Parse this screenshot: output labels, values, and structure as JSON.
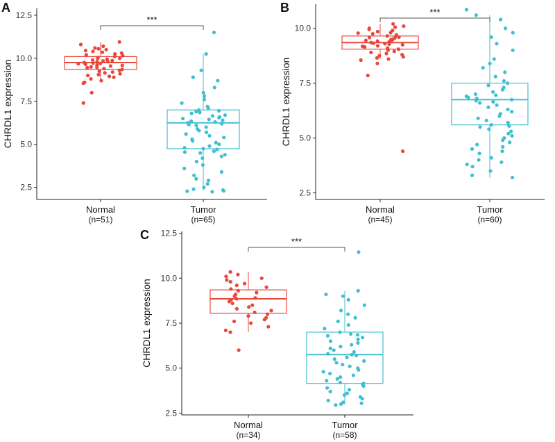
{
  "colors": {
    "normal": "#E8473B",
    "tumor": "#40BFD1"
  },
  "chart_data": [
    {
      "type": "boxplot",
      "panel_label": "A",
      "ylabel": "CHRDL1 expression",
      "ylim": [
        1.8,
        12.9
      ],
      "yticks": [
        2.5,
        5.0,
        7.5,
        10.0,
        12.5
      ],
      "ytick_labels": [
        "2.5",
        "5.0",
        "7.5",
        "10.0",
        "12.5"
      ],
      "significance": "***",
      "groups": [
        {
          "name": "Normal",
          "n_label": "(n=51)",
          "color_key": "normal",
          "box": {
            "q1": 9.35,
            "median": 9.75,
            "q3": 10.1,
            "whisker_low": 8.6,
            "whisker_high": 10.95
          },
          "points": [
            10.95,
            10.8,
            10.7,
            10.6,
            10.55,
            10.5,
            10.45,
            10.4,
            10.35,
            10.3,
            10.25,
            10.2,
            10.15,
            10.1,
            10.05,
            10.0,
            9.98,
            9.95,
            9.9,
            9.87,
            9.85,
            9.8,
            9.78,
            9.75,
            9.72,
            9.7,
            9.68,
            9.65,
            9.6,
            9.58,
            9.55,
            9.5,
            9.48,
            9.45,
            9.4,
            9.35,
            9.3,
            9.25,
            9.2,
            9.15,
            9.1,
            9.05,
            9.0,
            8.95,
            8.9,
            8.8,
            8.7,
            8.6,
            8.55,
            8.0,
            7.4
          ]
        },
        {
          "name": "Tumor",
          "n_label": "(n=65)",
          "color_key": "tumor",
          "box": {
            "q1": 4.75,
            "median": 6.25,
            "q3": 7.0,
            "whisker_low": 2.3,
            "whisker_high": 10.25
          },
          "points": [
            11.5,
            10.25,
            9.3,
            8.9,
            8.7,
            8.3,
            8.0,
            7.8,
            7.6,
            7.4,
            7.2,
            7.1,
            7.0,
            6.95,
            6.9,
            6.85,
            6.8,
            6.7,
            6.65,
            6.6,
            6.55,
            6.5,
            6.45,
            6.4,
            6.35,
            6.3,
            6.25,
            6.2,
            6.15,
            6.1,
            6.0,
            5.9,
            5.8,
            5.7,
            5.6,
            5.5,
            5.4,
            5.3,
            5.2,
            5.1,
            5.0,
            4.9,
            4.8,
            4.75,
            4.7,
            4.6,
            4.55,
            4.5,
            4.4,
            4.3,
            4.2,
            4.0,
            3.8,
            3.6,
            3.4,
            3.2,
            3.0,
            2.9,
            2.7,
            2.5,
            2.4,
            2.35,
            2.3,
            2.28,
            2.25
          ]
        }
      ]
    },
    {
      "type": "boxplot",
      "panel_label": "B",
      "ylabel": "CHRDL1 expression",
      "ylim": [
        2.2,
        11.1
      ],
      "yticks": [
        2.5,
        5.0,
        7.5,
        10.0
      ],
      "ytick_labels": [
        "2.5",
        "5.0",
        "7.5",
        "10.0"
      ],
      "significance": "***",
      "groups": [
        {
          "name": "Normal",
          "n_label": "(n=45)",
          "color_key": "normal",
          "box": {
            "q1": 9.05,
            "median": 9.35,
            "q3": 9.65,
            "whisker_low": 8.6,
            "whisker_high": 10.2
          },
          "points": [
            10.2,
            10.1,
            10.05,
            10.0,
            9.95,
            9.9,
            9.85,
            9.8,
            9.78,
            9.75,
            9.7,
            9.65,
            9.6,
            9.58,
            9.55,
            9.5,
            9.48,
            9.45,
            9.42,
            9.4,
            9.38,
            9.35,
            9.32,
            9.3,
            9.28,
            9.25,
            9.2,
            9.18,
            9.15,
            9.1,
            9.05,
            9.0,
            8.95,
            8.9,
            8.85,
            8.8,
            8.75,
            8.7,
            8.65,
            8.6,
            8.55,
            8.4,
            7.85,
            9.6,
            4.4
          ]
        },
        {
          "name": "Tumor",
          "n_label": "(n=60)",
          "color_key": "tumor",
          "box": {
            "q1": 5.6,
            "median": 6.75,
            "q3": 7.5,
            "whisker_low": 3.2,
            "whisker_high": 10.6
          },
          "points": [
            10.85,
            10.6,
            10.4,
            10.0,
            9.8,
            9.6,
            9.3,
            9.0,
            8.6,
            8.4,
            8.2,
            8.0,
            7.8,
            7.6,
            7.5,
            7.4,
            7.3,
            7.2,
            7.1,
            7.0,
            6.95,
            6.9,
            6.85,
            6.8,
            6.75,
            6.7,
            6.65,
            6.6,
            6.5,
            6.4,
            6.3,
            6.2,
            6.1,
            6.0,
            5.9,
            5.8,
            5.7,
            5.6,
            5.5,
            5.4,
            5.3,
            5.2,
            5.1,
            5.0,
            4.9,
            4.8,
            4.7,
            4.6,
            4.5,
            4.4,
            4.3,
            4.1,
            4.0,
            3.9,
            3.8,
            3.7,
            3.5,
            3.3,
            3.2,
            5.55
          ]
        }
      ]
    },
    {
      "type": "boxplot",
      "panel_label": "C",
      "ylabel": "CHRDL1 expression",
      "ylim": [
        2.4,
        12.6
      ],
      "yticks": [
        2.5,
        5.0,
        7.5,
        10.0,
        12.5
      ],
      "ytick_labels": [
        "2.5",
        "5.0",
        "7.5",
        "10.0",
        "12.5"
      ],
      "significance": "***",
      "groups": [
        {
          "name": "Normal",
          "n_label": "(n=34)",
          "color_key": "normal",
          "box": {
            "q1": 8.05,
            "median": 8.85,
            "q3": 9.35,
            "whisker_low": 7.0,
            "whisker_high": 10.35
          },
          "points": [
            10.35,
            10.2,
            10.1,
            10.0,
            9.9,
            9.8,
            9.7,
            9.6,
            9.5,
            9.4,
            9.3,
            9.2,
            9.1,
            9.0,
            8.9,
            8.85,
            8.8,
            8.7,
            8.6,
            8.5,
            8.4,
            8.3,
            8.2,
            8.1,
            8.0,
            7.9,
            7.8,
            7.7,
            7.6,
            7.5,
            7.3,
            7.1,
            7.0,
            6.0
          ]
        },
        {
          "name": "Tumor",
          "n_label": "(n=58)",
          "color_key": "tumor",
          "box": {
            "q1": 4.15,
            "median": 5.75,
            "q3": 7.0,
            "whisker_low": 3.0,
            "whisker_high": 9.3
          },
          "points": [
            11.45,
            9.3,
            9.1,
            9.0,
            8.8,
            8.5,
            8.2,
            8.0,
            7.8,
            7.6,
            7.4,
            7.2,
            7.0,
            6.9,
            6.8,
            6.7,
            6.6,
            6.5,
            6.4,
            6.3,
            6.2,
            6.1,
            6.0,
            5.9,
            5.8,
            5.75,
            5.7,
            5.6,
            5.5,
            5.4,
            5.3,
            5.2,
            5.1,
            5.0,
            4.9,
            4.8,
            4.7,
            4.6,
            4.5,
            4.4,
            4.3,
            4.2,
            4.15,
            4.1,
            4.0,
            3.9,
            3.8,
            3.7,
            3.6,
            3.5,
            3.4,
            3.3,
            3.2,
            3.1,
            3.05,
            3.0,
            2.95,
            6.85
          ]
        }
      ]
    }
  ]
}
